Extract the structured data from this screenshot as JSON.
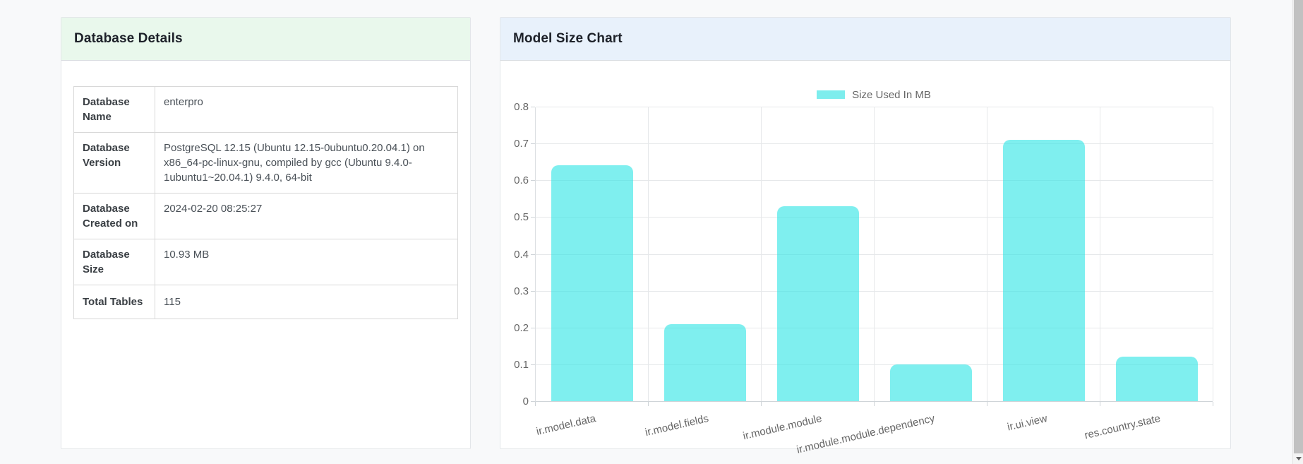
{
  "page": {
    "background": "#f8f9fa"
  },
  "database_details": {
    "title": "Database Details",
    "header_color": "#e9f8ec",
    "rows": [
      {
        "label": "Database Name",
        "value": "enterpro"
      },
      {
        "label": "Database Version",
        "value": "PostgreSQL 12.15 (Ubuntu 12.15-0ubuntu0.20.04.1) on x86_64-pc-linux-gnu, compiled by gcc (Ubuntu 9.4.0-1ubuntu1~20.04.1) 9.4.0, 64-bit"
      },
      {
        "label": "Database Created on",
        "value": "2024-02-20 08:25:27"
      },
      {
        "label": "Database Size",
        "value": "10.93 MB"
      },
      {
        "label": "Total Tables",
        "value": "115"
      }
    ]
  },
  "chart_data": {
    "type": "bar",
    "title": "Model Size Chart",
    "header_color": "#e8f1fb",
    "legend": "Size Used In MB",
    "legend_position": "top-center",
    "categories": [
      "ir.model.data",
      "ir.model.fields",
      "ir.module.module",
      "ir.module.module.dependency",
      "ir.ui.view",
      "res.country.state"
    ],
    "values": [
      0.64,
      0.21,
      0.53,
      0.1,
      0.71,
      0.12
    ],
    "xlabel": "",
    "ylabel": "",
    "ylim": [
      0,
      0.8
    ],
    "ytick_step": 0.1,
    "grid": true,
    "bar_color": "rgba(49,229,229,0.62)",
    "bar_color_solid": "#7deded",
    "tick_text_color": "#666666"
  },
  "scrollbar": {
    "thumb_color": "#c1c1c1",
    "track_color": "#f1f1f1"
  }
}
